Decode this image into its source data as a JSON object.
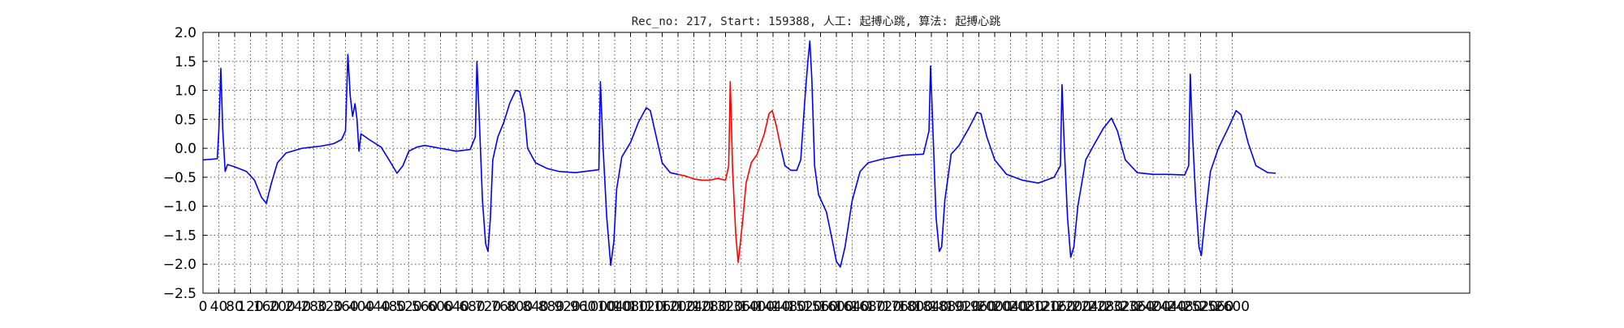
{
  "chart_data": {
    "type": "line",
    "title": "Rec_no: 217, Start: 159388, 人工: 起搏心跳, 算法: 起搏心跳",
    "xlabel": "",
    "ylabel": "",
    "xlim": [
      0,
      3200
    ],
    "ylim": [
      -2.5,
      2.0
    ],
    "grid": true,
    "yticks": [
      2.0,
      1.5,
      1.0,
      0.5,
      0.0,
      -0.5,
      -1.0,
      -1.5,
      -2.0,
      -2.5
    ],
    "ytick_labels": [
      "2.0",
      "1.5",
      "1.0",
      "0.5",
      "0.0",
      "−0.5",
      "−1.0",
      "−1.5",
      "−2.0",
      "−2.5"
    ],
    "xticks": [
      0,
      40,
      80,
      120,
      160,
      200,
      240,
      280,
      320,
      360,
      400,
      440,
      480,
      520,
      560,
      600,
      640,
      680,
      720,
      760,
      800,
      840,
      880,
      920,
      960,
      1000,
      1040,
      1080,
      1120,
      1160,
      1200,
      1240,
      1280,
      1320,
      1360,
      1400,
      1440,
      1480,
      1520,
      1560,
      1600,
      1640,
      1680,
      1720,
      1760,
      1800,
      1840,
      1880,
      1920,
      1960,
      2000,
      2040,
      2080,
      2120,
      2160,
      2200,
      2240,
      2280,
      2320,
      2360,
      2400,
      2440,
      2480,
      2520,
      2560,
      2600
    ],
    "xtick_labels": [
      "0",
      "40",
      "80",
      "120",
      "160",
      "200",
      "240",
      "280",
      "320",
      "360",
      "400",
      "440",
      "480",
      "520",
      "560",
      "600",
      "640",
      "680",
      "720",
      "760",
      "800",
      "840",
      "880",
      "920",
      "960",
      "1000",
      "1040",
      "1080",
      "1120",
      "1160",
      "1200",
      "1240",
      "1280",
      "1320",
      "1360",
      "1400",
      "1440",
      "1480",
      "1520",
      "1560",
      "1600",
      "1640",
      "1680",
      "1720",
      "1760",
      "1800",
      "1840",
      "1880",
      "1920",
      "1960",
      "2000",
      "2040",
      "2080",
      "2120",
      "2160",
      "2200",
      "2240",
      "2280",
      "2320",
      "2360",
      "2400",
      "2440",
      "2480",
      "2520",
      "2560",
      "2600"
    ],
    "colors": {
      "normal": "#0000ff",
      "highlight": "#ff0000"
    },
    "series": [
      {
        "segment": "before",
        "color": "#0000ff",
        "points": [
          [
            0,
            -0.2
          ],
          [
            20,
            -0.19
          ],
          [
            36,
            -0.18
          ],
          [
            40,
            0.3
          ],
          [
            45,
            1.38
          ],
          [
            50,
            0.3
          ],
          [
            56,
            -0.4
          ],
          [
            62,
            -0.28
          ],
          [
            80,
            -0.32
          ],
          [
            110,
            -0.4
          ],
          [
            130,
            -0.55
          ],
          [
            148,
            -0.85
          ],
          [
            160,
            -0.95
          ],
          [
            172,
            -0.62
          ],
          [
            188,
            -0.25
          ],
          [
            210,
            -0.08
          ],
          [
            250,
            0.0
          ],
          [
            300,
            0.04
          ],
          [
            330,
            0.08
          ],
          [
            350,
            0.15
          ],
          [
            360,
            0.3
          ],
          [
            366,
            1.62
          ],
          [
            372,
            0.9
          ],
          [
            378,
            0.55
          ],
          [
            384,
            0.77
          ],
          [
            389,
            0.5
          ],
          [
            394,
            -0.05
          ],
          [
            399,
            0.25
          ],
          [
            420,
            0.15
          ],
          [
            450,
            0.02
          ],
          [
            470,
            -0.2
          ],
          [
            490,
            -0.43
          ],
          [
            505,
            -0.3
          ],
          [
            520,
            -0.05
          ],
          [
            540,
            0.02
          ],
          [
            560,
            0.05
          ],
          [
            600,
            0.0
          ],
          [
            640,
            -0.05
          ],
          [
            675,
            -0.02
          ],
          [
            688,
            0.2
          ],
          [
            692,
            1.5
          ],
          [
            698,
            0.5
          ],
          [
            706,
            -0.9
          ],
          [
            714,
            -1.65
          ],
          [
            720,
            -1.78
          ],
          [
            726,
            -1.2
          ],
          [
            732,
            -0.2
          ],
          [
            745,
            0.2
          ],
          [
            760,
            0.45
          ],
          [
            775,
            0.78
          ],
          [
            790,
            1.0
          ],
          [
            800,
            0.98
          ],
          [
            812,
            0.6
          ],
          [
            820,
            0.0
          ],
          [
            840,
            -0.25
          ],
          [
            870,
            -0.35
          ],
          [
            900,
            -0.4
          ],
          [
            940,
            -0.42
          ],
          [
            1000,
            -0.37
          ],
          [
            1004,
            1.15
          ],
          [
            1010,
            0.1
          ],
          [
            1020,
            -1.2
          ],
          [
            1030,
            -2.02
          ],
          [
            1038,
            -1.6
          ],
          [
            1045,
            -0.7
          ],
          [
            1058,
            -0.15
          ],
          [
            1080,
            0.1
          ],
          [
            1100,
            0.45
          ],
          [
            1120,
            0.7
          ],
          [
            1130,
            0.65
          ],
          [
            1145,
            0.2
          ],
          [
            1160,
            -0.25
          ],
          [
            1180,
            -0.42
          ],
          [
            1200,
            -0.45
          ]
        ]
      },
      {
        "segment": "highlight",
        "color": "#ff0000",
        "points": [
          [
            1200,
            -0.45
          ],
          [
            1220,
            -0.48
          ],
          [
            1240,
            -0.53
          ],
          [
            1260,
            -0.55
          ],
          [
            1280,
            -0.55
          ],
          [
            1300,
            -0.52
          ],
          [
            1320,
            -0.55
          ],
          [
            1328,
            -0.3
          ],
          [
            1332,
            1.15
          ],
          [
            1338,
            -0.4
          ],
          [
            1346,
            -1.5
          ],
          [
            1352,
            -1.97
          ],
          [
            1358,
            -1.6
          ],
          [
            1364,
            -1.2
          ],
          [
            1372,
            -0.6
          ],
          [
            1385,
            -0.25
          ],
          [
            1400,
            -0.1
          ],
          [
            1418,
            0.25
          ],
          [
            1430,
            0.6
          ],
          [
            1438,
            0.65
          ],
          [
            1448,
            0.4
          ],
          [
            1460,
            0.0
          ]
        ]
      },
      {
        "segment": "after",
        "color": "#0000ff",
        "points": [
          [
            1460,
            0.0
          ],
          [
            1470,
            -0.3
          ],
          [
            1485,
            -0.38
          ],
          [
            1500,
            -0.38
          ],
          [
            1510,
            -0.2
          ],
          [
            1520,
            0.8
          ],
          [
            1528,
            1.5
          ],
          [
            1533,
            1.85
          ],
          [
            1538,
            1.2
          ],
          [
            1545,
            -0.3
          ],
          [
            1555,
            -0.8
          ],
          [
            1575,
            -1.1
          ],
          [
            1590,
            -1.6
          ],
          [
            1600,
            -1.95
          ],
          [
            1610,
            -2.05
          ],
          [
            1622,
            -1.7
          ],
          [
            1640,
            -0.9
          ],
          [
            1660,
            -0.4
          ],
          [
            1680,
            -0.25
          ],
          [
            1720,
            -0.18
          ],
          [
            1770,
            -0.12
          ],
          [
            1820,
            -0.1
          ],
          [
            1834,
            0.3
          ],
          [
            1838,
            1.42
          ],
          [
            1844,
            0.3
          ],
          [
            1852,
            -1.2
          ],
          [
            1860,
            -1.78
          ],
          [
            1866,
            -1.7
          ],
          [
            1874,
            -0.9
          ],
          [
            1890,
            -0.1
          ],
          [
            1910,
            0.05
          ],
          [
            1935,
            0.35
          ],
          [
            1955,
            0.62
          ],
          [
            1965,
            0.6
          ],
          [
            1980,
            0.2
          ],
          [
            2000,
            -0.2
          ],
          [
            2030,
            -0.45
          ],
          [
            2070,
            -0.55
          ],
          [
            2110,
            -0.6
          ],
          [
            2150,
            -0.5
          ],
          [
            2166,
            -0.3
          ],
          [
            2170,
            1.1
          ],
          [
            2176,
            0.0
          ],
          [
            2184,
            -1.2
          ],
          [
            2192,
            -1.88
          ],
          [
            2200,
            -1.7
          ],
          [
            2210,
            -1.0
          ],
          [
            2230,
            -0.2
          ],
          [
            2250,
            0.05
          ],
          [
            2275,
            0.35
          ],
          [
            2295,
            0.52
          ],
          [
            2310,
            0.3
          ],
          [
            2330,
            -0.2
          ],
          [
            2360,
            -0.42
          ],
          [
            2400,
            -0.45
          ],
          [
            2440,
            -0.45
          ],
          [
            2480,
            -0.46
          ],
          [
            2490,
            -0.3
          ],
          [
            2494,
            1.28
          ],
          [
            2500,
            0.2
          ],
          [
            2508,
            -0.9
          ],
          [
            2516,
            -1.7
          ],
          [
            2522,
            -1.85
          ],
          [
            2530,
            -1.3
          ],
          [
            2545,
            -0.4
          ],
          [
            2565,
            0.0
          ],
          [
            2590,
            0.35
          ],
          [
            2610,
            0.65
          ],
          [
            2622,
            0.58
          ],
          [
            2640,
            0.1
          ],
          [
            2660,
            -0.3
          ],
          [
            2690,
            -0.42
          ],
          [
            2710,
            -0.43
          ]
        ]
      }
    ]
  }
}
